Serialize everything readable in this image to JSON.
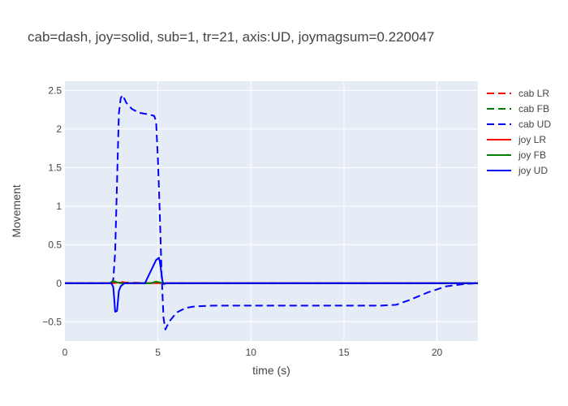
{
  "chart_data": {
    "type": "line",
    "title": "cab=dash, joy=solid, sub=1, tr=21, axis:UD, joymagsum=0.220047",
    "xlabel": "time (s)",
    "ylabel": "Movement",
    "xlim": [
      0,
      22.2
    ],
    "ylim": [
      -0.75,
      2.62
    ],
    "x_ticks": [
      0,
      5,
      10,
      15,
      20
    ],
    "x_tick_labels": [
      "0",
      "5",
      "10",
      "15",
      "20"
    ],
    "y_ticks": [
      -0.5,
      0,
      0.5,
      1,
      1.5,
      2,
      2.5
    ],
    "y_tick_labels": [
      "−0.5",
      "0",
      "0.5",
      "1",
      "1.5",
      "2",
      "2.5"
    ],
    "grid": true,
    "legend_position": "right",
    "series": [
      {
        "name": "cab LR",
        "style": "dash",
        "color": "#ff0000",
        "x": [
          0,
          2.5,
          2.8,
          3.0,
          3.2,
          5.0,
          22.2
        ],
        "y": [
          0,
          0,
          0.01,
          0.02,
          0.01,
          0,
          0
        ]
      },
      {
        "name": "cab FB",
        "style": "dash",
        "color": "#008000",
        "x": [
          0,
          2.4,
          2.6,
          2.8,
          3.0,
          4.8,
          5.0,
          5.2,
          22.2
        ],
        "y": [
          0,
          0,
          0.02,
          0.01,
          0,
          0,
          0.01,
          0,
          0
        ]
      },
      {
        "name": "cab UD",
        "style": "dash",
        "color": "#0000ff",
        "x": [
          0,
          2.5,
          2.6,
          2.7,
          2.8,
          2.9,
          3.0,
          3.1,
          3.3,
          3.6,
          4.0,
          4.5,
          4.8,
          4.9,
          5.0,
          5.1,
          5.2,
          5.3,
          5.4,
          5.6,
          6.0,
          6.5,
          7.0,
          8.0,
          10.0,
          12.0,
          15.0,
          17.0,
          17.8,
          18.5,
          19.5,
          20.5,
          21.5,
          22.2
        ],
        "y": [
          0,
          0,
          0.05,
          0.4,
          1.3,
          2.2,
          2.4,
          2.44,
          2.34,
          2.26,
          2.21,
          2.19,
          2.17,
          2.1,
          1.6,
          0.9,
          0.1,
          -0.45,
          -0.6,
          -0.5,
          -0.38,
          -0.32,
          -0.3,
          -0.29,
          -0.29,
          -0.29,
          -0.29,
          -0.29,
          -0.28,
          -0.22,
          -0.12,
          -0.04,
          -0.01,
          0
        ]
      },
      {
        "name": "joy LR",
        "style": "solid",
        "color": "#ff0000",
        "x": [
          0,
          2.6,
          2.8,
          3.0,
          3.2,
          4.8,
          5.0,
          5.2,
          22.2
        ],
        "y": [
          0,
          0,
          0.005,
          0.01,
          0,
          0,
          0.005,
          0,
          0
        ]
      },
      {
        "name": "joy FB",
        "style": "solid",
        "color": "#008000",
        "x": [
          0,
          2.4,
          2.6,
          2.8,
          3.0,
          4.6,
          4.9,
          5.1,
          5.3,
          22.2
        ],
        "y": [
          0,
          0,
          0.03,
          0.01,
          0,
          0,
          0.02,
          0.01,
          0,
          0
        ]
      },
      {
        "name": "joy UD",
        "style": "solid",
        "color": "#0000ff",
        "x": [
          0,
          2.5,
          2.6,
          2.65,
          2.7,
          2.8,
          2.9,
          3.0,
          3.2,
          4.3,
          4.5,
          4.7,
          4.9,
          5.05,
          5.1,
          5.15,
          5.2,
          5.25,
          5.3,
          5.5,
          22.2
        ],
        "y": [
          0,
          0,
          -0.05,
          -0.2,
          -0.37,
          -0.36,
          -0.1,
          -0.04,
          0,
          0,
          0.1,
          0.2,
          0.3,
          0.33,
          0.28,
          0.2,
          0.1,
          0.02,
          -0.01,
          0,
          0
        ]
      }
    ]
  }
}
